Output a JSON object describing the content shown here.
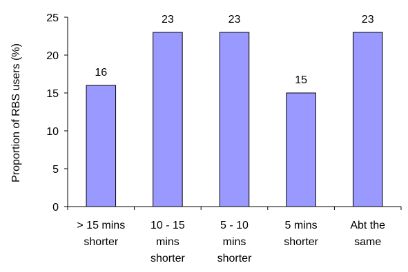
{
  "chart_data": {
    "type": "bar",
    "title": "",
    "xlabel": "",
    "ylabel": "Proportion of RBS users (%)",
    "ylim": [
      0,
      25
    ],
    "yticks": [
      0,
      5,
      10,
      15,
      20,
      25
    ],
    "grid": false,
    "legend": "none",
    "categories": [
      [
        "> 15 mins",
        "shorter"
      ],
      [
        "10 - 15",
        "mins",
        "shorter"
      ],
      [
        "5 - 10",
        "mins",
        "shorter"
      ],
      [
        "5 mins",
        "shorter"
      ],
      [
        "Abt the",
        "same"
      ]
    ],
    "values": [
      16,
      23,
      23,
      15,
      23
    ],
    "data_labels": [
      "16",
      "23",
      "23",
      "15",
      "23"
    ],
    "bar_color": "#9999ff",
    "bar_edge_color": "#000000"
  }
}
